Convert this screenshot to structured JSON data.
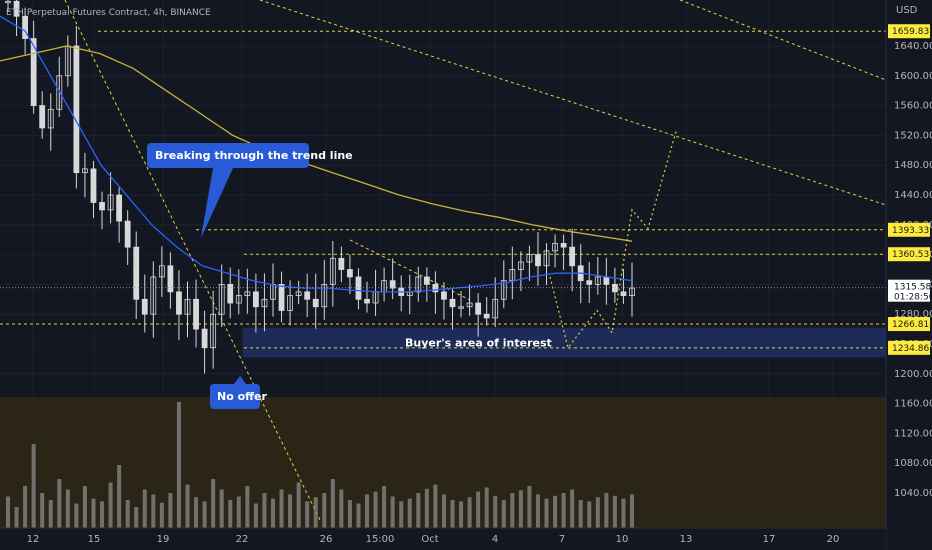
{
  "header": {
    "symbol_line": "ETH Perpetual Futures Contract, 4h, BINANCE",
    "currency": "USD"
  },
  "colors": {
    "background": "#131722",
    "volume_band": "#2b2518",
    "zone": "#1c2b57",
    "dashed_line": "#e6d23c",
    "ma_blue": "#2962ff",
    "ma_yellow": "#c9b33a",
    "candle": "#d8d8d8",
    "callout": "#2a5bd7",
    "tag_bg": "#ffeb3b",
    "axis_text": "#b2b5be"
  },
  "chart_data": {
    "type": "candlestick",
    "y_axis": {
      "range": [
        1020,
        1740
      ],
      "ticks": [
        "1640.00",
        "1600.00",
        "1560.00",
        "1520.00",
        "1480.00",
        "1440.00",
        "1400.00",
        "1360.00",
        "1320.00",
        "1280.00",
        "1240.00",
        "1200.00",
        "1160.00",
        "1120.00",
        "1080.00",
        "1040.00"
      ],
      "tick_values": [
        1640,
        1600,
        1560,
        1520,
        1480,
        1440,
        1400,
        1360,
        1320,
        1280,
        1240,
        1200,
        1160,
        1120,
        1080,
        1040
      ]
    },
    "x_axis": {
      "labels": [
        "12",
        "15",
        "19",
        "22",
        "26",
        "15:00",
        "Oct",
        "4",
        "7",
        "10",
        "13",
        "17",
        "20"
      ]
    },
    "price_levels": [
      {
        "value": 1659.83,
        "label": "1659.83"
      },
      {
        "value": 1393.33,
        "label": "1393.33"
      },
      {
        "value": 1360.53,
        "label": "1360.53"
      },
      {
        "value": 1266.81,
        "label": "1266.81"
      },
      {
        "value": 1234.86,
        "label": "1234.86"
      }
    ],
    "current_price": {
      "value": 1315.58,
      "label": "1315.58",
      "countdown": "01:28:50"
    },
    "zone": {
      "low": 1222,
      "high": 1262,
      "label": "Buyer's area of interest"
    },
    "annotations": [
      {
        "text": "Breaking through the trend line"
      },
      {
        "text": "No offer"
      }
    ],
    "projection_path": [
      1330,
      1235,
      1285,
      1255,
      1420,
      1395,
      1525
    ],
    "close_series": [
      1700,
      1680,
      1650,
      1560,
      1530,
      1555,
      1600,
      1640,
      1470,
      1475,
      1430,
      1420,
      1440,
      1405,
      1370,
      1300,
      1280,
      1330,
      1345,
      1310,
      1280,
      1300,
      1260,
      1235,
      1280,
      1320,
      1295,
      1305,
      1310,
      1290,
      1300,
      1320,
      1285,
      1305,
      1310,
      1300,
      1290,
      1320,
      1355,
      1340,
      1330,
      1300,
      1295,
      1310,
      1325,
      1315,
      1305,
      1310,
      1330,
      1320,
      1310,
      1300,
      1290,
      1290,
      1295,
      1280,
      1275,
      1300,
      1325,
      1340,
      1350,
      1360,
      1345,
      1365,
      1375,
      1370,
      1345,
      1325,
      1320,
      1330,
      1320,
      1310,
      1305,
      1315
    ],
    "ma_fast": [
      1680,
      1660,
      1600,
      1540,
      1480,
      1440,
      1400,
      1370,
      1345,
      1335,
      1325,
      1318,
      1315,
      1315,
      1312,
      1310,
      1310,
      1312,
      1315,
      1318,
      1322,
      1330,
      1335,
      1335,
      1330,
      1325
    ],
    "ma_slow": [
      1620,
      1630,
      1640,
      1630,
      1610,
      1580,
      1550,
      1520,
      1500,
      1485,
      1470,
      1455,
      1440,
      1428,
      1418,
      1410,
      1400,
      1392,
      1385,
      1378
    ],
    "volume": [
      45,
      30,
      60,
      120,
      50,
      40,
      70,
      55,
      35,
      60,
      42,
      38,
      65,
      90,
      40,
      30,
      55,
      48,
      36,
      50,
      180,
      62,
      44,
      38,
      70,
      55,
      40,
      45,
      60,
      35,
      50,
      42,
      55,
      48,
      65,
      38,
      44,
      50,
      70,
      55,
      40,
      35,
      48,
      52,
      60,
      45,
      38,
      42,
      50,
      56,
      62,
      48,
      40,
      38,
      44,
      52,
      58,
      46,
      40,
      50,
      54,
      60,
      48,
      42,
      46,
      50,
      55,
      40,
      38,
      44,
      50,
      46,
      42,
      48
    ]
  }
}
